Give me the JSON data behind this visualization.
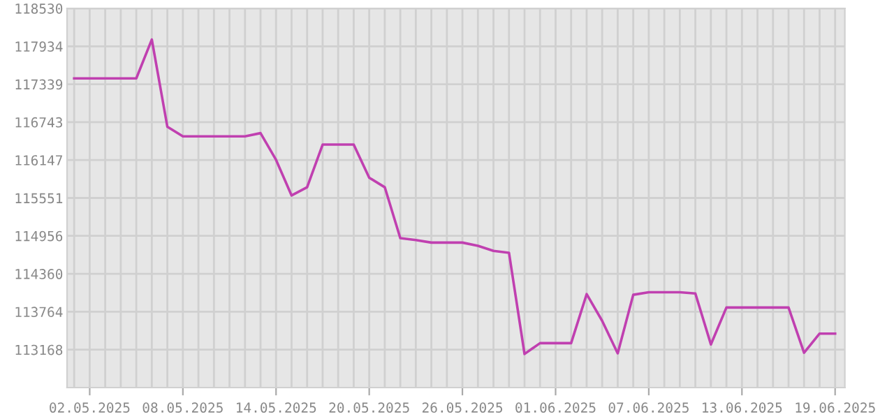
{
  "chart_data": {
    "type": "line",
    "x": [
      "2025-05-01",
      "2025-05-02",
      "2025-05-03",
      "2025-05-04",
      "2025-05-05",
      "2025-05-06",
      "2025-05-07",
      "2025-05-08",
      "2025-05-09",
      "2025-05-10",
      "2025-05-11",
      "2025-05-12",
      "2025-05-13",
      "2025-05-14",
      "2025-05-15",
      "2025-05-16",
      "2025-05-17",
      "2025-05-18",
      "2025-05-19",
      "2025-05-20",
      "2025-05-21",
      "2025-05-22",
      "2025-05-23",
      "2025-05-24",
      "2025-05-25",
      "2025-05-26",
      "2025-05-27",
      "2025-05-28",
      "2025-05-29",
      "2025-05-30",
      "2025-05-31",
      "2025-06-01",
      "2025-06-02",
      "2025-06-03",
      "2025-06-04",
      "2025-06-05",
      "2025-06-06",
      "2025-06-07",
      "2025-06-08",
      "2025-06-09",
      "2025-06-10",
      "2025-06-11",
      "2025-06-12",
      "2025-06-13",
      "2025-06-14",
      "2025-06-15",
      "2025-06-16",
      "2025-06-17",
      "2025-06-18",
      "2025-06-19"
    ],
    "series": [
      {
        "color": "#c040b0",
        "values": [
          117430,
          117430,
          117430,
          117430,
          117430,
          118040,
          116670,
          116520,
          116520,
          116520,
          116520,
          116520,
          116570,
          116150,
          115590,
          115720,
          116390,
          116390,
          116390,
          115870,
          115720,
          114920,
          114890,
          114850,
          114850,
          114850,
          114800,
          114720,
          114690,
          113100,
          113270,
          113270,
          113270,
          114040,
          113620,
          113110,
          114030,
          114070,
          114070,
          114070,
          114050,
          113250,
          113830,
          113830,
          113830,
          113830,
          113830,
          113120,
          113420,
          113420
        ]
      }
    ],
    "xlim": [
      "2025-04-30T13:00",
      "2025-06-19T15:00"
    ],
    "xticks": [
      {
        "value": "2025-05-02",
        "label": "02.05.2025"
      },
      {
        "value": "2025-05-08",
        "label": "08.05.2025"
      },
      {
        "value": "2025-05-14",
        "label": "14.05.2025"
      },
      {
        "value": "2025-05-20",
        "label": "20.05.2025"
      },
      {
        "value": "2025-05-26",
        "label": "26.05.2025"
      },
      {
        "value": "2025-06-01",
        "label": "01.06.2025"
      },
      {
        "value": "2025-06-07",
        "label": "07.06.2025"
      },
      {
        "value": "2025-06-13",
        "label": "13.06.2025"
      },
      {
        "value": "2025-06-19",
        "label": "19.06.2025"
      }
    ],
    "ylim": [
      112572,
      118530
    ],
    "yticks": [
      113168,
      113764,
      114360,
      114956,
      115551,
      116147,
      116743,
      117339,
      117934,
      118530
    ],
    "grid": true,
    "marker": "none",
    "line_style": "solid"
  }
}
